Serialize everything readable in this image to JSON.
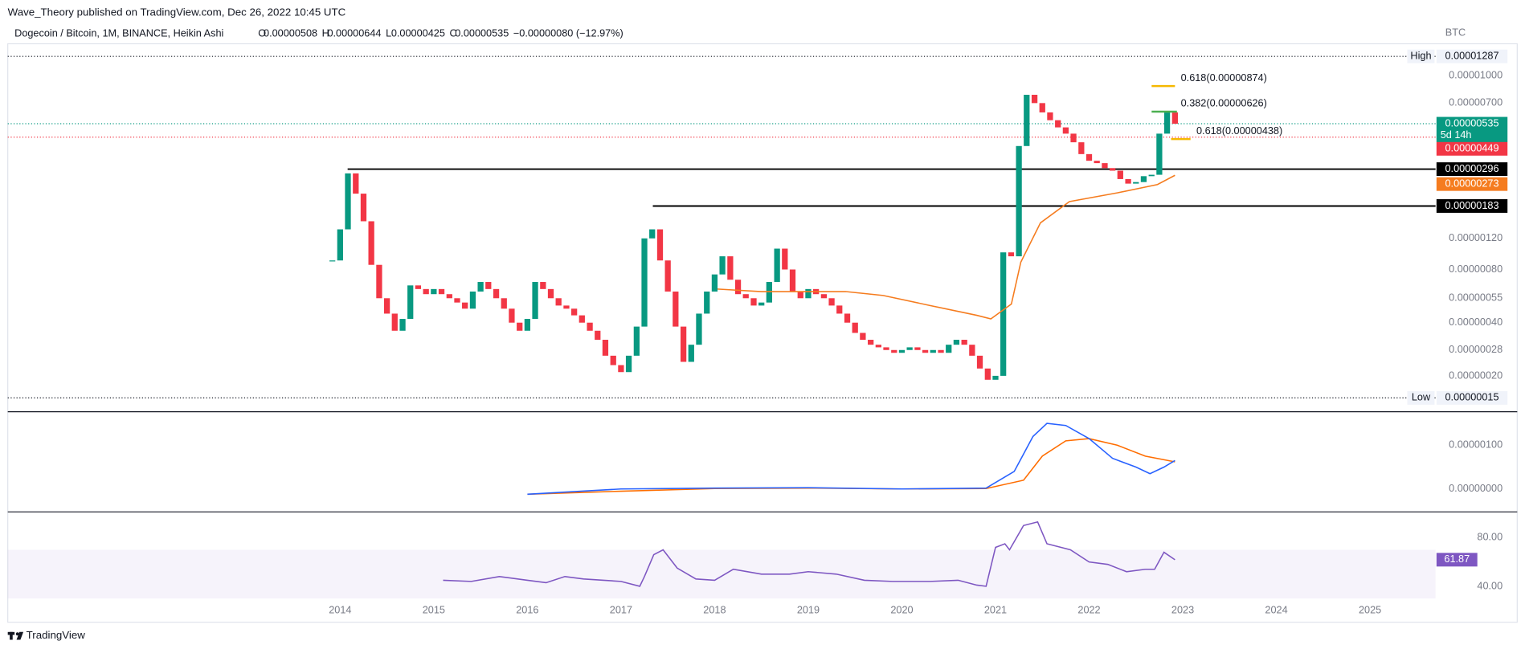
{
  "header": {
    "publisher": "Wave_Theory published on TradingView.com, Dec 26, 2022 10:45 UTC"
  },
  "legend": {
    "symbol": "Dogecoin / Bitcoin, 1M, BINANCE, Heikin Ashi",
    "ohlc": [
      {
        "key": "O",
        "value": "0.00000508"
      },
      {
        "key": "H",
        "value": "0.00000644"
      },
      {
        "key": "L",
        "value": "0.00000425"
      },
      {
        "key": "C",
        "value": "0.00000535"
      }
    ],
    "change": "−0.00000080 (−12.97%)"
  },
  "footer": "TradingView",
  "chart_data": {
    "type": "candlestick",
    "unit": "BTC",
    "log_scale": true,
    "xlim": [
      2010.45,
      2025.7
    ],
    "xticks": [
      2014,
      2015,
      2016,
      2017,
      2018,
      2019,
      2020,
      2021,
      2022,
      2023,
      2024,
      2025
    ],
    "ylim": [
      1.26e-07,
      1.517e-05
    ],
    "yticks": [
      {
        "value": 1e-05,
        "label": "0.00001000"
      },
      {
        "value": 7e-06,
        "label": "0.00000700"
      },
      {
        "value": 1.2e-06,
        "label": "0.00000120"
      },
      {
        "value": 8e-07,
        "label": "0.00000080"
      },
      {
        "value": 5.5e-07,
        "label": "0.00000055"
      },
      {
        "value": 4e-07,
        "label": "0.00000040"
      },
      {
        "value": 2.8e-07,
        "label": "0.00000028"
      },
      {
        "value": 2e-07,
        "label": "0.00000020"
      }
    ],
    "up_color": "#089981",
    "down_color": "#f23645",
    "x": [
      2013.917,
      2014.0,
      2014.083,
      2014.167,
      2014.25,
      2014.333,
      2014.417,
      2014.5,
      2014.583,
      2014.667,
      2014.75,
      2014.833,
      2014.917,
      2015.0,
      2015.083,
      2015.167,
      2015.25,
      2015.333,
      2015.417,
      2015.5,
      2015.583,
      2015.667,
      2015.75,
      2015.833,
      2015.917,
      2016.0,
      2016.083,
      2016.167,
      2016.25,
      2016.333,
      2016.417,
      2016.5,
      2016.583,
      2016.667,
      2016.75,
      2016.833,
      2016.917,
      2017.0,
      2017.083,
      2017.167,
      2017.25,
      2017.333,
      2017.417,
      2017.5,
      2017.583,
      2017.667,
      2017.75,
      2017.833,
      2017.917,
      2018.0,
      2018.083,
      2018.167,
      2018.25,
      2018.333,
      2018.417,
      2018.5,
      2018.583,
      2018.667,
      2018.75,
      2018.833,
      2018.917,
      2019.0,
      2019.083,
      2019.167,
      2019.25,
      2019.333,
      2019.417,
      2019.5,
      2019.583,
      2019.667,
      2019.75,
      2019.833,
      2019.917,
      2020.0,
      2020.083,
      2020.167,
      2020.25,
      2020.333,
      2020.417,
      2020.5,
      2020.583,
      2020.667,
      2020.75,
      2020.833,
      2020.917,
      2021.0,
      2021.083,
      2021.167,
      2021.25,
      2021.333,
      2021.417,
      2021.5,
      2021.583,
      2021.667,
      2021.75,
      2021.833,
      2021.917,
      2022.0,
      2022.083,
      2022.167,
      2022.25,
      2022.333,
      2022.417,
      2022.5,
      2022.583,
      2022.667,
      2022.75,
      2022.833,
      2022.917
    ],
    "close": [
      9e-07,
      1.35e-06,
      2.8e-06,
      2.15e-06,
      1.5e-06,
      8.5e-07,
      5.5e-07,
      4.5e-07,
      3.6e-07,
      4.2e-07,
      6.5e-07,
      6.2e-07,
      5.8e-07,
      6.2e-07,
      5.8e-07,
      5.5e-07,
      5.2e-07,
      4.8e-07,
      6e-07,
      6.8e-07,
      6.2e-07,
      5.5e-07,
      4.8e-07,
      4e-07,
      3.6e-07,
      4.2e-07,
      6.8e-07,
      6.2e-07,
      5.5e-07,
      5e-07,
      4.8e-07,
      4.4e-07,
      4e-07,
      3.6e-07,
      3.2e-07,
      2.6e-07,
      2.3e-07,
      2.1e-07,
      2.6e-07,
      3.8e-07,
      1.2e-06,
      1.35e-06,
      9e-07,
      6e-07,
      3.8e-07,
      2.4e-07,
      3e-07,
      4.5e-07,
      6e-07,
      7.5e-07,
      9.5e-07,
      7e-07,
      5.8e-07,
      5.5e-07,
      5e-07,
      5.2e-07,
      6.8e-07,
      1.05e-06,
      8e-07,
      6e-07,
      5.5e-07,
      6.2e-07,
      5.8e-07,
      5.5e-07,
      5e-07,
      4.5e-07,
      4e-07,
      3.5e-07,
      3.2e-07,
      3e-07,
      2.9e-07,
      2.8e-07,
      2.7e-07,
      2.8e-07,
      2.9e-07,
      2.8e-07,
      2.7e-07,
      2.8e-07,
      2.7e-07,
      3e-07,
      3.2e-07,
      3e-07,
      2.6e-07,
      2.2e-07,
      1.9e-07,
      2e-07,
      1e-06,
      9.5e-07,
      4e-06,
      7.8e-06,
      7e-06,
      6.2e-06,
      5.6e-06,
      5.1e-06,
      4.7e-06,
      4.2e-06,
      3.6e-06,
      3.3e-06,
      3.2e-06,
      3e-06,
      2.9e-06,
      2.6e-06,
      2.45e-06,
      2.5e-06,
      2.7e-06,
      2.75e-06,
      4.7e-06,
      6.2e-06,
      5.35e-06
    ],
    "high_label": {
      "name": "High",
      "value": 1.287e-05,
      "label": "0.00001287"
    },
    "low_label": {
      "name": "Low",
      "value": 1.5e-07,
      "label": "0.00000015"
    },
    "last": {
      "value": 5.35e-06,
      "label": "0.00000535",
      "countdown": "5d 14h",
      "color": "#089981"
    },
    "prev": {
      "value": 4.49e-06,
      "label": "0.00000449",
      "color": "#f23645"
    },
    "levels": [
      {
        "value": 2.96e-06,
        "label": "0.00000296",
        "from": 2014.08
      },
      {
        "value": 1.83e-06,
        "label": "0.00000183",
        "from": 2017.34
      }
    ],
    "fib": [
      {
        "text": "0.618(0.00000874)",
        "value": 8.74e-06,
        "color": "#f5b800"
      },
      {
        "text": "0.382(0.00000626)",
        "value": 6.26e-06,
        "color": "#4caf50"
      },
      {
        "text": "0.618(0.00000438)",
        "value": 4.38e-06,
        "color": "#f5b800"
      }
    ],
    "ma": {
      "color": "#f57c1f",
      "x": [
        2018.03,
        2018.5,
        2019.0,
        2019.4,
        2019.8,
        2020.3,
        2020.8,
        2020.95,
        2021.17,
        2021.27,
        2021.48,
        2021.79,
        2022.3,
        2022.73,
        2022.917
      ],
      "values": [
        6.2e-07,
        6e-07,
        6e-07,
        6e-07,
        5.7e-07,
        5e-07,
        4.4e-07,
        4.2e-07,
        5.1e-07,
        8.8e-07,
        1.47e-06,
        1.94e-06,
        2.17e-06,
        2.42e-06,
        2.73e-06
      ],
      "value_label": "0.00000273"
    },
    "macd": {
      "ylim": [
        -4.9e-07,
        1.73e-06
      ],
      "yticks": [
        {
          "value": 1e-06,
          "label": "0.00000100"
        },
        {
          "value": 0,
          "label": "0.00000000"
        }
      ],
      "macd_line": {
        "color": "#2962ff",
        "x": [
          2016.0,
          2017.0,
          2018.0,
          2019.0,
          2020.0,
          2020.9,
          2021.2,
          2021.4,
          2021.55,
          2021.75,
          2022.0,
          2022.25,
          2022.5,
          2022.65,
          2022.8,
          2022.917
        ],
        "values": [
          -1.2e-07,
          0.0,
          2e-08,
          3e-08,
          0.0,
          2e-08,
          4e-07,
          1.2e-06,
          1.5e-06,
          1.45e-06,
          1.15e-06,
          7e-07,
          5e-07,
          3.5e-07,
          5e-07,
          6.5e-07
        ]
      },
      "signal_line": {
        "color": "#ff6d00",
        "x": [
          2016.0,
          2017.0,
          2018.0,
          2019.0,
          2020.0,
          2020.9,
          2021.3,
          2021.5,
          2021.75,
          2022.0,
          2022.3,
          2022.6,
          2022.917
        ],
        "values": [
          -1.2e-07,
          -5e-08,
          1e-08,
          2e-08,
          0.0,
          1e-08,
          2e-07,
          7.5e-07,
          1.1e-06,
          1.15e-06,
          1e-06,
          7.5e-07,
          6.2e-07
        ]
      }
    },
    "rsi": {
      "ylim": [
        10.4,
        100.8
      ],
      "yticks": [
        {
          "value": 80,
          "label": "80.00"
        },
        {
          "value": 40,
          "label": "40.00"
        }
      ],
      "band": [
        30,
        70
      ],
      "color": "#7e57c2",
      "x": [
        2015.1,
        2015.4,
        2015.7,
        2016.0,
        2016.2,
        2016.4,
        2016.6,
        2017.0,
        2017.2,
        2017.25,
        2017.35,
        2017.45,
        2017.6,
        2017.8,
        2018.0,
        2018.2,
        2018.5,
        2018.8,
        2019.0,
        2019.3,
        2019.6,
        2019.9,
        2020.3,
        2020.6,
        2020.8,
        2020.9,
        2021.0,
        2021.1,
        2021.15,
        2021.3,
        2021.45,
        2021.55,
        2021.8,
        2022.0,
        2022.2,
        2022.4,
        2022.6,
        2022.7,
        2022.8,
        2022.917
      ],
      "values": [
        45,
        44,
        48,
        45,
        43,
        48,
        46,
        44,
        40,
        48,
        66,
        70,
        55,
        46,
        45,
        54,
        50,
        50,
        52,
        50,
        45,
        44,
        44,
        45,
        41,
        40,
        72,
        75,
        70,
        90,
        93,
        75,
        70,
        60,
        58,
        52,
        54,
        54,
        68,
        61.87
      ],
      "value_label": "61.87"
    }
  }
}
